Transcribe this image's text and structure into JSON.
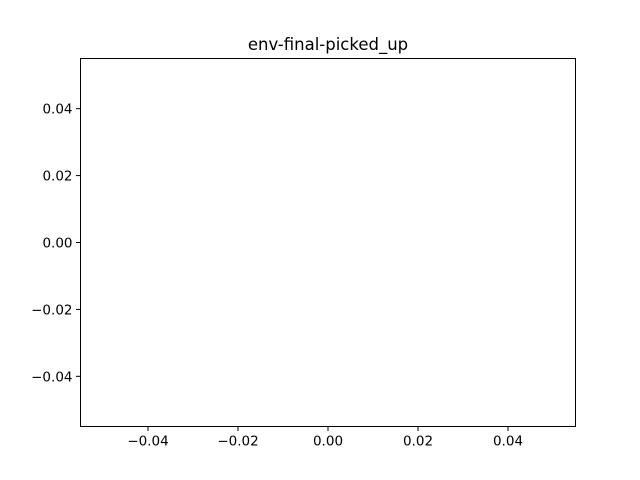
{
  "chart_data": {
    "type": "line",
    "title": "env-final-picked_up",
    "xlabel": "",
    "ylabel": "",
    "series": [],
    "xlim": [
      -0.055,
      0.055
    ],
    "ylim": [
      -0.055,
      0.055
    ],
    "x_ticks": [
      -0.04,
      -0.02,
      0.0,
      0.02,
      0.04
    ],
    "x_tick_labels": [
      "−0.04",
      "−0.02",
      "0.00",
      "0.02",
      "0.04"
    ],
    "y_ticks": [
      -0.04,
      -0.02,
      0.0,
      0.02,
      0.04
    ],
    "y_tick_labels": [
      "−0.04",
      "−0.02",
      "0.00",
      "0.02",
      "0.04"
    ],
    "grid": false,
    "frame_color": "#000000",
    "background_color": "#ffffff"
  }
}
